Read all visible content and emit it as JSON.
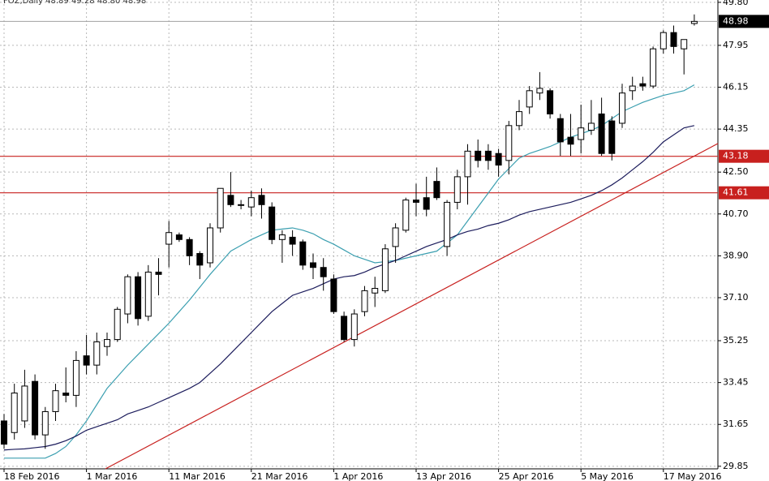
{
  "chart_data": {
    "type": "candlestick",
    "title": "FOZ,Daily  48.89 49.28 48.80 48.98",
    "categories": [
      "18 Feb 2016",
      null,
      null,
      null,
      null,
      null,
      null,
      null,
      "1 Mar 2016",
      null,
      null,
      null,
      null,
      null,
      null,
      null,
      "11 Mar 2016",
      null,
      null,
      null,
      null,
      null,
      null,
      null,
      "21 Mar 2016",
      null,
      null,
      null,
      null,
      null,
      null,
      null,
      "1 Apr 2016",
      null,
      null,
      null,
      null,
      null,
      null,
      null,
      "13 Apr 2016",
      null,
      null,
      null,
      null,
      null,
      null,
      null,
      "25 Apr 2016",
      null,
      null,
      null,
      null,
      null,
      null,
      null,
      "5 May 2016",
      null,
      null,
      null,
      null,
      null,
      null,
      null,
      "17 May 2016",
      null,
      null,
      null
    ],
    "open": [
      31.8,
      31.3,
      31.8,
      33.5,
      31.2,
      32.2,
      33.0,
      32.9,
      34.6,
      34.2,
      35.0,
      35.3,
      36.4,
      38.0,
      36.3,
      38.2,
      39.4,
      39.8,
      39.6,
      39.0,
      38.6,
      40.1,
      41.5,
      41.1,
      41.0,
      41.5,
      41.0,
      39.6,
      39.7,
      39.5,
      38.6,
      38.4,
      37.9,
      36.3,
      35.3,
      36.5,
      37.3,
      37.4,
      39.3,
      40.0,
      41.3,
      41.4,
      42.1,
      39.3,
      41.2,
      42.3,
      43.4,
      43.4,
      43.3,
      43.0,
      44.5,
      45.3,
      45.9,
      46.0,
      44.8,
      44.0,
      43.9,
      44.3,
      45.0,
      44.7,
      44.6,
      46.0,
      46.3,
      46.2,
      47.8,
      48.5,
      47.8,
      48.89
    ],
    "high": [
      32.1,
      33.4,
      34.0,
      33.8,
      32.4,
      33.4,
      34.1,
      34.8,
      35.5,
      35.6,
      35.6,
      36.7,
      38.1,
      38.2,
      38.5,
      38.8,
      40.4,
      39.9,
      39.7,
      39.1,
      40.3,
      41.8,
      42.5,
      41.3,
      41.7,
      41.8,
      41.2,
      40.0,
      40.0,
      39.6,
      39.0,
      38.8,
      38.1,
      36.5,
      36.6,
      37.6,
      38.0,
      39.4,
      40.3,
      41.4,
      42.0,
      42.3,
      42.7,
      41.3,
      42.6,
      43.7,
      43.9,
      43.7,
      43.5,
      44.7,
      45.6,
      46.2,
      46.8,
      46.1,
      45.0,
      45.0,
      45.4,
      45.6,
      45.7,
      44.9,
      46.3,
      46.6,
      46.6,
      47.9,
      48.6,
      48.8,
      48.2,
      49.28
    ],
    "low": [
      30.6,
      31.0,
      31.5,
      31.0,
      30.6,
      31.8,
      32.6,
      32.4,
      33.8,
      33.8,
      34.6,
      35.2,
      36.0,
      35.9,
      36.1,
      37.2,
      38.4,
      39.5,
      38.5,
      37.9,
      38.4,
      39.9,
      41.0,
      40.9,
      40.6,
      40.5,
      39.4,
      38.6,
      38.9,
      38.3,
      37.9,
      37.4,
      36.4,
      35.2,
      35.0,
      36.3,
      36.7,
      37.3,
      38.6,
      39.9,
      40.6,
      40.6,
      41.3,
      38.9,
      40.9,
      41.1,
      42.7,
      42.6,
      42.3,
      42.4,
      44.3,
      45.0,
      45.6,
      44.8,
      43.2,
      43.2,
      43.3,
      44.1,
      43.2,
      43.0,
      44.4,
      45.6,
      46.0,
      46.1,
      47.6,
      47.6,
      46.7,
      48.8
    ],
    "close": [
      30.8,
      33.0,
      33.3,
      31.2,
      32.2,
      33.1,
      32.9,
      34.4,
      34.2,
      35.2,
      35.3,
      36.6,
      38.0,
      36.2,
      38.2,
      38.1,
      39.9,
      39.6,
      38.9,
      38.5,
      40.1,
      41.8,
      41.1,
      41.1,
      41.4,
      41.1,
      39.6,
      39.8,
      39.4,
      38.5,
      38.4,
      38.0,
      36.5,
      35.3,
      36.4,
      37.4,
      37.5,
      39.2,
      40.1,
      41.3,
      41.2,
      40.9,
      41.4,
      41.2,
      42.3,
      43.4,
      43.0,
      43.0,
      42.8,
      44.5,
      45.1,
      46.0,
      46.1,
      45.0,
      43.8,
      43.7,
      44.4,
      44.6,
      43.3,
      43.3,
      45.9,
      46.2,
      46.2,
      47.8,
      48.5,
      47.9,
      48.2,
      48.98
    ],
    "series": [
      {
        "color": "#3b9fb0",
        "values": [
          30.2,
          30.2,
          30.2,
          30.2,
          30.2,
          30.4,
          30.7,
          31.2,
          31.8,
          32.5,
          33.2,
          33.7,
          34.2,
          34.65,
          35.1,
          35.55,
          36.0,
          36.5,
          37.0,
          37.55,
          38.1,
          38.6,
          39.1,
          39.35,
          39.6,
          39.8,
          40.0,
          40.05,
          40.1,
          40.0,
          39.85,
          39.6,
          39.4,
          39.15,
          38.9,
          38.75,
          38.6,
          38.65,
          38.7,
          38.8,
          38.9,
          39.0,
          39.1,
          39.45,
          39.8,
          40.4,
          41.0,
          41.6,
          42.2,
          42.65,
          43.1,
          43.3,
          43.45,
          43.6,
          43.8,
          44.0,
          44.15,
          44.3,
          44.5,
          44.8,
          45.1,
          45.3,
          45.5,
          45.65,
          45.8,
          45.9,
          46.0,
          46.25
        ]
      },
      {
        "color": "#1c1c5c",
        "values": [
          30.55,
          30.58,
          30.6,
          30.65,
          30.7,
          30.8,
          30.95,
          31.15,
          31.4,
          31.55,
          31.7,
          31.85,
          32.1,
          32.25,
          32.4,
          32.6,
          32.8,
          33.0,
          33.2,
          33.45,
          33.85,
          34.25,
          34.7,
          35.15,
          35.6,
          36.05,
          36.5,
          36.85,
          37.2,
          37.35,
          37.5,
          37.7,
          37.9,
          38.0,
          38.05,
          38.2,
          38.4,
          38.55,
          38.7,
          38.9,
          39.1,
          39.3,
          39.45,
          39.6,
          39.8,
          39.95,
          40.05,
          40.2,
          40.3,
          40.45,
          40.65,
          40.8,
          40.9,
          41.0,
          41.1,
          41.2,
          41.35,
          41.5,
          41.7,
          41.95,
          42.25,
          42.6,
          42.95,
          43.35,
          43.8,
          44.1,
          44.4,
          44.5
        ]
      }
    ],
    "trend_line": {
      "x": [
        9.84,
        69.3
      ],
      "y": [
        29.74,
        43.73
      ],
      "color": "#c8201e"
    },
    "hlines": [
      43.18,
      41.61
    ],
    "hline_color": "#c8201e",
    "last_price": 48.98,
    "ylim": [
      29.74,
      49.9
    ],
    "yticks": [
      {
        "value": 49.8,
        "label": "49.80"
      },
      47.95,
      46.15,
      44.35,
      {
        "value": 42.5,
        "label": "42.50"
      },
      {
        "value": 40.7,
        "label": "40.70"
      },
      {
        "value": 38.9,
        "label": "38.90"
      },
      {
        "value": 37.1,
        "label": "37.10"
      },
      35.25,
      33.45,
      31.65,
      29.85
    ],
    "grid": true
  }
}
